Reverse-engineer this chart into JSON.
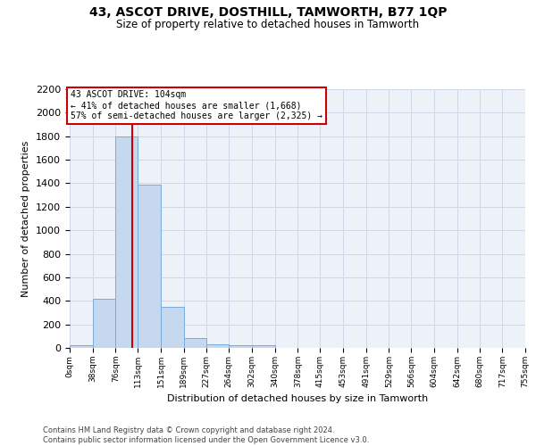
{
  "title": "43, ASCOT DRIVE, DOSTHILL, TAMWORTH, B77 1QP",
  "subtitle": "Size of property relative to detached houses in Tamworth",
  "xlabel": "Distribution of detached houses by size in Tamworth",
  "ylabel": "Number of detached properties",
  "footer_line1": "Contains HM Land Registry data © Crown copyright and database right 2024.",
  "footer_line2": "Contains public sector information licensed under the Open Government Licence v3.0.",
  "bar_edges": [
    0,
    38,
    76,
    113,
    151,
    189,
    227,
    264,
    302,
    340,
    378,
    415,
    453,
    491,
    529,
    566,
    604,
    642,
    680,
    717,
    755
  ],
  "bar_heights": [
    20,
    420,
    1800,
    1390,
    350,
    80,
    30,
    20,
    20,
    0,
    0,
    0,
    0,
    0,
    0,
    0,
    0,
    0,
    0,
    0
  ],
  "bar_color": "#c5d8f0",
  "bar_edgecolor": "#7aabdc",
  "grid_color": "#d0d8e8",
  "property_size": 104,
  "red_line_color": "#cc0000",
  "annotation_line1": "43 ASCOT DRIVE: 104sqm",
  "annotation_line2": "← 41% of detached houses are smaller (1,668)",
  "annotation_line3": "57% of semi-detached houses are larger (2,325) →",
  "annotation_bbox_color": "#cc0000",
  "ylim": [
    0,
    2200
  ],
  "ytick_values": [
    0,
    200,
    400,
    600,
    800,
    1000,
    1200,
    1400,
    1600,
    1800,
    2000,
    2200
  ],
  "xtick_labels": [
    "0sqm",
    "38sqm",
    "76sqm",
    "113sqm",
    "151sqm",
    "189sqm",
    "227sqm",
    "264sqm",
    "302sqm",
    "340sqm",
    "378sqm",
    "415sqm",
    "453sqm",
    "491sqm",
    "529sqm",
    "566sqm",
    "604sqm",
    "642sqm",
    "680sqm",
    "717sqm",
    "755sqm"
  ],
  "background_color": "#edf2f9",
  "title_fontsize": 10,
  "subtitle_fontsize": 8.5,
  "ylabel_fontsize": 8,
  "xlabel_fontsize": 8,
  "ytick_fontsize": 8,
  "xtick_fontsize": 6.5,
  "annotation_fontsize": 7,
  "footer_fontsize": 6
}
